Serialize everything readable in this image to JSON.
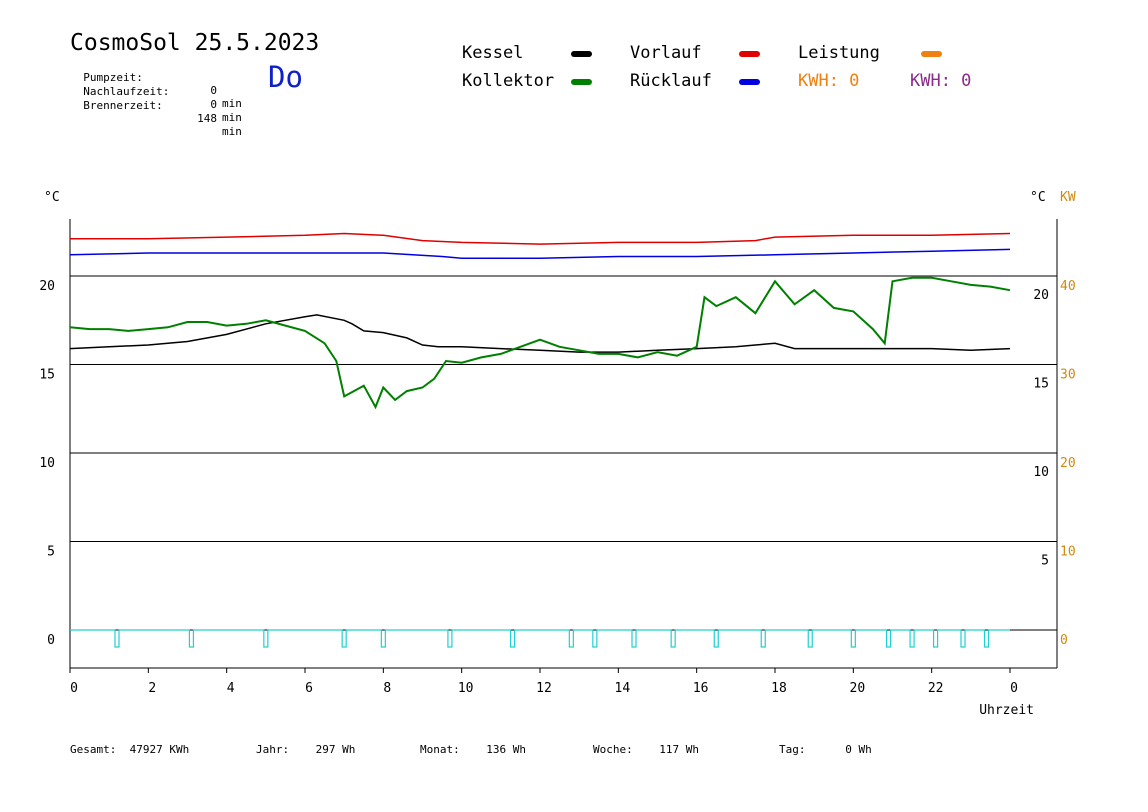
{
  "header": {
    "title": "CosmoSol 25.5.2023",
    "weekday": "Do",
    "stats": [
      {
        "label": "Pumpzeit:",
        "value": "0",
        "unit": "min"
      },
      {
        "label": "Nachlaufzeit:",
        "value": "0",
        "unit": "min"
      },
      {
        "label": "Brennerzeit:",
        "value": "148",
        "unit": "min"
      }
    ]
  },
  "legend": {
    "kessel": "Kessel",
    "kollektor": "Kollektor",
    "vorlauf": "Vorlauf",
    "ruecklauf": "Rücklauf",
    "leistung": "Leistung",
    "kwh1": "KWH: 0",
    "kwh2": "KWH: 0"
  },
  "colors": {
    "kessel": "#000000",
    "kollektor": "#008000",
    "vorlauf": "#e00000",
    "ruecklauf": "#0000e0",
    "leistung": "#f08010",
    "kwh2": "#8a2b8a",
    "pump": "#20d0d0",
    "kw_axis": "#d08a10"
  },
  "footer": [
    {
      "label": "Gesamt:",
      "value": "47927 KWh"
    },
    {
      "label": "Jahr:",
      "value": "297 Wh"
    },
    {
      "label": "Monat:",
      "value": "136 Wh"
    },
    {
      "label": "Woche:",
      "value": "117 Wh"
    },
    {
      "label": "Tag:",
      "value": "0 Wh"
    }
  ],
  "chart_data": {
    "type": "line",
    "y_left_unit": "°C",
    "y_right_unit": "°C",
    "y_right2_unit": "KW",
    "xlabel": "Uhrzeit",
    "xlim": [
      0,
      24
    ],
    "ylim": [
      -2,
      23.5
    ],
    "x_ticks": [
      "0",
      "2",
      "4",
      "6",
      "8",
      "10",
      "12",
      "14",
      "16",
      "18",
      "20",
      "22",
      "0"
    ],
    "y_ticks_left": [
      20,
      15,
      10,
      5,
      0
    ],
    "y_ticks_right": [
      20,
      15,
      10,
      5
    ],
    "y_ticks_kw": [
      40,
      30,
      20,
      10,
      0
    ],
    "grid": true,
    "series": [
      {
        "name": "Vorlauf",
        "key": "vorlauf",
        "x": [
          0,
          2,
          4,
          6,
          7,
          8,
          9,
          10,
          12,
          14,
          16,
          17.5,
          18,
          20,
          22,
          24
        ],
        "y": [
          22.1,
          22.1,
          22.2,
          22.3,
          22.4,
          22.3,
          22.0,
          21.9,
          21.8,
          21.9,
          21.9,
          22.0,
          22.2,
          22.3,
          22.3,
          22.4
        ]
      },
      {
        "name": "Rücklauf",
        "key": "ruecklauf",
        "x": [
          0,
          2,
          4,
          6,
          8,
          9.5,
          10,
          12,
          14,
          16,
          18,
          20,
          22,
          24
        ],
        "y": [
          21.2,
          21.3,
          21.3,
          21.3,
          21.3,
          21.1,
          21.0,
          21.0,
          21.1,
          21.1,
          21.2,
          21.3,
          21.4,
          21.5
        ]
      },
      {
        "name": "Kessel",
        "key": "kessel",
        "x": [
          0,
          1,
          2,
          3,
          4,
          5,
          6,
          6.3,
          7,
          7.2,
          7.5,
          8,
          8.6,
          9,
          9.4,
          10,
          11,
          12,
          13,
          14,
          15,
          16,
          17,
          17.5,
          18,
          18.5,
          19,
          20,
          21,
          22,
          23,
          24
        ],
        "y": [
          15.9,
          16.0,
          16.1,
          16.3,
          16.7,
          17.3,
          17.7,
          17.8,
          17.5,
          17.3,
          16.9,
          16.8,
          16.5,
          16.1,
          16.0,
          16.0,
          15.9,
          15.8,
          15.7,
          15.7,
          15.8,
          15.9,
          16.0,
          16.1,
          16.2,
          15.9,
          15.9,
          15.9,
          15.9,
          15.9,
          15.8,
          15.9
        ]
      },
      {
        "name": "Kollektor",
        "key": "kollektor",
        "x": [
          0,
          0.5,
          1,
          1.5,
          2,
          2.5,
          3,
          3.5,
          4,
          4.5,
          5,
          5.5,
          6,
          6.5,
          6.8,
          7,
          7.5,
          7.8,
          8,
          8.3,
          8.6,
          9,
          9.3,
          9.6,
          10,
          10.5,
          11,
          11.5,
          12,
          12.5,
          13,
          13.5,
          14,
          14.5,
          15,
          15.5,
          16,
          16.2,
          16.5,
          17,
          17.5,
          18,
          18.5,
          19,
          19.5,
          20,
          20.5,
          20.8,
          21,
          21.5,
          22,
          22.5,
          23,
          23.5,
          24
        ],
        "y": [
          17.1,
          17.0,
          17.0,
          16.9,
          17.0,
          17.1,
          17.4,
          17.4,
          17.2,
          17.3,
          17.5,
          17.2,
          16.9,
          16.2,
          15.2,
          13.2,
          13.8,
          12.6,
          13.7,
          13.0,
          13.5,
          13.7,
          14.2,
          15.2,
          15.1,
          15.4,
          15.6,
          16.0,
          16.4,
          16.0,
          15.8,
          15.6,
          15.6,
          15.4,
          15.7,
          15.5,
          16.0,
          18.8,
          18.3,
          18.8,
          17.9,
          19.7,
          18.4,
          19.2,
          18.2,
          18.0,
          17.0,
          16.2,
          19.7,
          19.9,
          19.9,
          19.7,
          19.5,
          19.4,
          19.2
        ]
      }
    ],
    "pump_pulses": [
      1.2,
      3.1,
      5.0,
      7.0,
      8.0,
      9.7,
      11.3,
      12.8,
      13.4,
      14.4,
      15.4,
      16.5,
      17.7,
      18.9,
      20.0,
      20.9,
      21.5,
      22.1,
      22.8,
      23.4
    ]
  }
}
